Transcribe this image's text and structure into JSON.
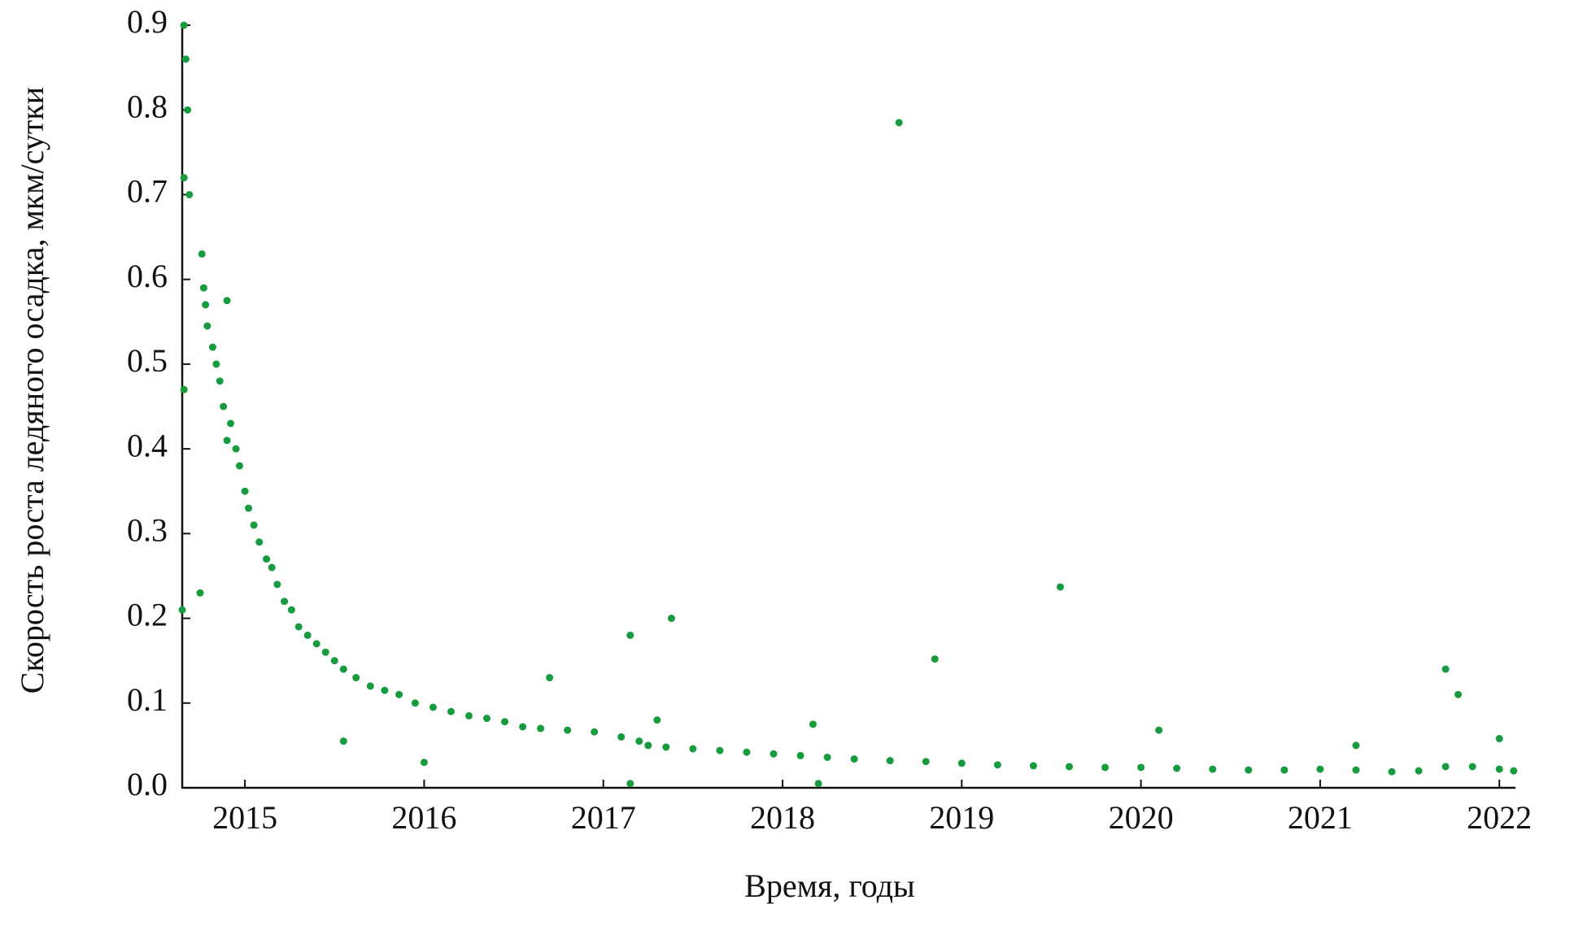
{
  "chart_data": {
    "type": "scatter",
    "x_label": "Время, годы",
    "y_label": "Скорость роста ледяного осадка, мкм/сутки",
    "color": "#169b3f",
    "xlim": [
      2014.65,
      2022.09
    ],
    "ylim": [
      0,
      0.9
    ],
    "xticks": [
      2015,
      2016,
      2017,
      2018,
      2019,
      2020,
      2021,
      2022
    ],
    "yticks": [
      {
        "value": 0,
        "label": "0.0"
      },
      0.1,
      0.2,
      0.3,
      0.4,
      0.5,
      0.6,
      0.7,
      0.8,
      0.9
    ],
    "x": [
      2014.66,
      2014.67,
      2014.68,
      2014.66,
      2014.69,
      2014.66,
      2014.65,
      2014.76,
      2014.77,
      2014.78,
      2014.79,
      2014.82,
      2014.84,
      2014.86,
      2014.88,
      2014.9,
      2014.92,
      2014.95,
      2014.97,
      2015.0,
      2015.02,
      2015.05,
      2015.08,
      2015.12,
      2015.15,
      2015.18,
      2015.22,
      2015.26,
      2015.3,
      2015.35,
      2015.4,
      2015.45,
      2015.5,
      2015.55,
      2015.62,
      2015.7,
      2015.78,
      2015.86,
      2015.95,
      2016.05,
      2016.15,
      2016.25,
      2016.35,
      2016.45,
      2016.55,
      2016.65,
      2016.8,
      2016.95,
      2017.1,
      2017.2,
      2017.25,
      2017.35,
      2017.5,
      2017.65,
      2017.8,
      2017.95,
      2018.1,
      2018.25,
      2018.4,
      2018.6,
      2018.8,
      2019.0,
      2019.2,
      2019.4,
      2019.6,
      2019.8,
      2020.0,
      2020.2,
      2020.4,
      2020.6,
      2020.8,
      2021.0,
      2021.2,
      2021.4,
      2021.55,
      2021.7,
      2021.85,
      2022.0,
      2022.08,
      2018.65,
      2019.55,
      2017.38,
      2017.15,
      2018.85,
      2016.7,
      2021.7,
      2021.77,
      2014.9,
      2014.75,
      2015.55,
      2016.0,
      2020.1,
      2017.3,
      2018.17,
      2021.2,
      2022.0,
      2017.15,
      2018.2
    ],
    "values": [
      0.9,
      0.86,
      0.8,
      0.72,
      0.7,
      0.47,
      0.21,
      0.63,
      0.59,
      0.57,
      0.545,
      0.52,
      0.5,
      0.48,
      0.45,
      0.41,
      0.43,
      0.4,
      0.38,
      0.35,
      0.33,
      0.31,
      0.29,
      0.27,
      0.26,
      0.24,
      0.22,
      0.21,
      0.19,
      0.18,
      0.17,
      0.16,
      0.15,
      0.14,
      0.13,
      0.12,
      0.115,
      0.11,
      0.1,
      0.095,
      0.09,
      0.085,
      0.082,
      0.078,
      0.072,
      0.07,
      0.068,
      0.066,
      0.06,
      0.055,
      0.05,
      0.048,
      0.046,
      0.044,
      0.042,
      0.04,
      0.038,
      0.036,
      0.034,
      0.032,
      0.031,
      0.029,
      0.027,
      0.026,
      0.025,
      0.024,
      0.024,
      0.023,
      0.022,
      0.021,
      0.021,
      0.022,
      0.021,
      0.019,
      0.02,
      0.025,
      0.025,
      0.022,
      0.02,
      0.785,
      0.237,
      0.2,
      0.18,
      0.152,
      0.13,
      0.14,
      0.11,
      0.575,
      0.23,
      0.055,
      0.03,
      0.068,
      0.08,
      0.075,
      0.05,
      0.058,
      0.005,
      0.005
    ]
  }
}
